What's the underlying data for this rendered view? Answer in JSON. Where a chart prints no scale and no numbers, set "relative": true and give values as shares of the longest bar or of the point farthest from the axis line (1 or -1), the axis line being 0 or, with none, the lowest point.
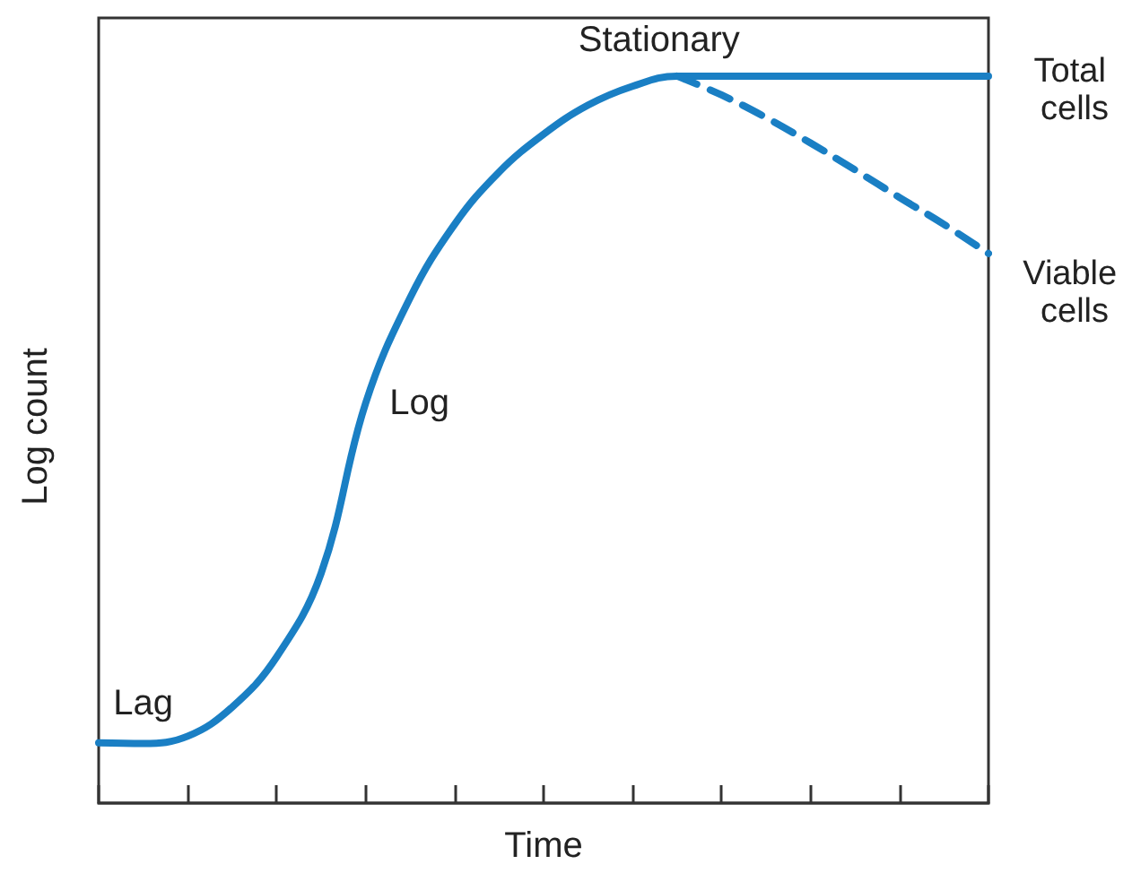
{
  "chart_data": {
    "type": "line",
    "xlabel": "Time",
    "ylabel": "Log count",
    "relative": true,
    "legend": false,
    "grid": false,
    "marker": "none",
    "categories": [
      null,
      null,
      null,
      null,
      null,
      null,
      null,
      null,
      null,
      null,
      null,
      null,
      null,
      null,
      null,
      null,
      null,
      null,
      null,
      null,
      null
    ],
    "series": [
      {
        "name": "Total cells",
        "color": "#1a7fc4",
        "line_style": "solid",
        "values": [
          0.083,
          0.082,
          0.092,
          0.132,
          0.201,
          0.316,
          0.55,
          0.695,
          0.796,
          0.868,
          0.92,
          0.96,
          0.986,
          1,
          1,
          1,
          1,
          1,
          1,
          1,
          1
        ]
      },
      {
        "name": "Viable cells",
        "color": "#1a7fc4",
        "line_style": "dashed",
        "values": [
          null,
          null,
          null,
          null,
          null,
          null,
          null,
          null,
          null,
          null,
          null,
          null,
          null,
          1,
          0.974,
          0.943,
          0.908,
          0.871,
          0.833,
          0.796,
          0.756
        ]
      }
    ],
    "annotations": [
      "Lag",
      "Log",
      "Stationary"
    ]
  }
}
